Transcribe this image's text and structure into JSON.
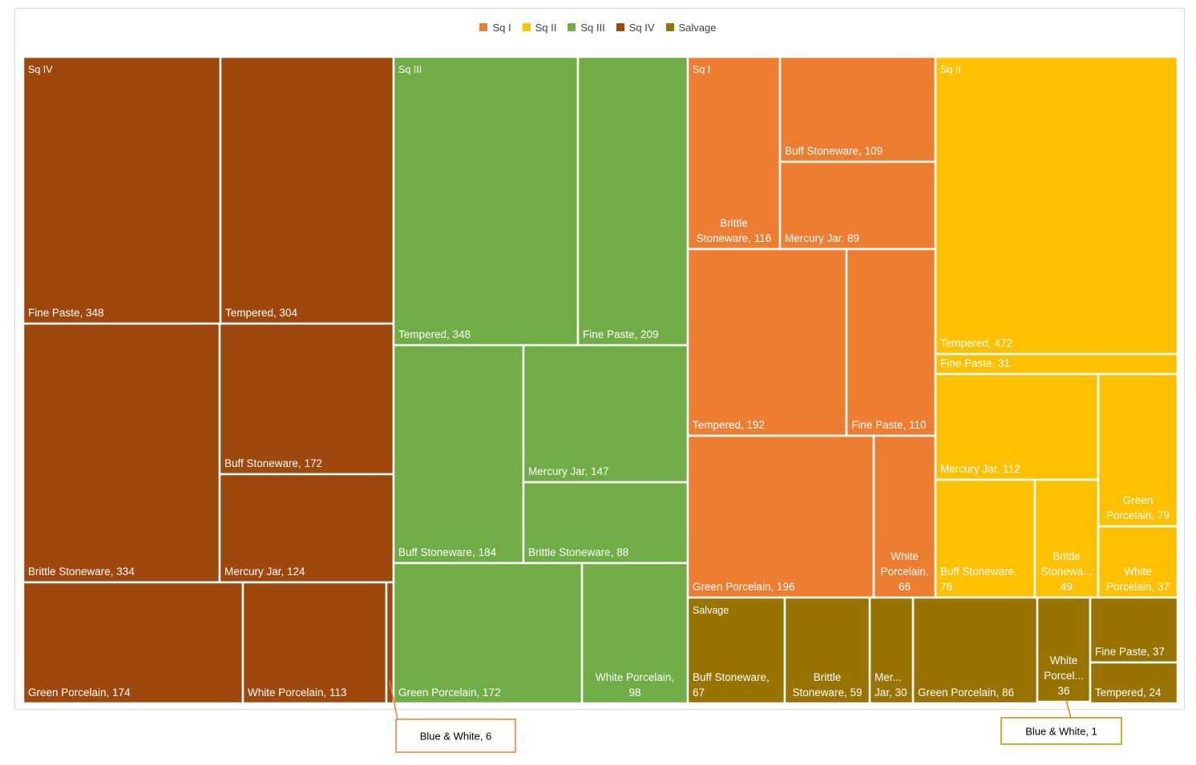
{
  "chart_data": {
    "type": "treemap",
    "legend_position": "top",
    "legend": [
      {
        "name": "Sq I",
        "color": "#ED7D31"
      },
      {
        "name": "Sq II",
        "color": "#FFC000"
      },
      {
        "name": "Sq III",
        "color": "#70AD47"
      },
      {
        "name": "Sq IV",
        "color": "#9E480E"
      },
      {
        "name": "Salvage",
        "color": "#997300"
      }
    ],
    "groups": [
      {
        "name": "Sq IV",
        "color": "#9E480E",
        "items": [
          {
            "label": "Fine Paste",
            "value": 348
          },
          {
            "label": "Tempered",
            "value": 304
          },
          {
            "label": "Brittle Stoneware",
            "value": 334
          },
          {
            "label": "Buff Stoneware",
            "value": 172
          },
          {
            "label": "Mercury Jar",
            "value": 124
          },
          {
            "label": "Green Porcelain",
            "value": 174
          },
          {
            "label": "White Porcelain",
            "value": 113
          },
          {
            "label": "Blue & White",
            "value": 6
          }
        ]
      },
      {
        "name": "Sq III",
        "color": "#70AD47",
        "items": [
          {
            "label": "Tempered",
            "value": 348
          },
          {
            "label": "Fine Paste",
            "value": 209
          },
          {
            "label": "Buff Stoneware",
            "value": 184
          },
          {
            "label": "Mercury Jar",
            "value": 147
          },
          {
            "label": "Brittle Stoneware",
            "value": 88
          },
          {
            "label": "Green Porcelain",
            "value": 172
          },
          {
            "label": "White Porcelain",
            "value": 98
          }
        ]
      },
      {
        "name": "Sq I",
        "color": "#ED7D31",
        "items": [
          {
            "label": "Brittle Stoneware",
            "value": 116
          },
          {
            "label": "Buff Stoneware",
            "value": 109
          },
          {
            "label": "Mercury Jar",
            "value": 89
          },
          {
            "label": "Tempered",
            "value": 192
          },
          {
            "label": "Fine Paste",
            "value": 110
          },
          {
            "label": "Green Porcelain",
            "value": 196
          },
          {
            "label": "White Porcelain",
            "value": 66
          }
        ]
      },
      {
        "name": "Sq II",
        "color": "#FFC000",
        "items": [
          {
            "label": "Tempered",
            "value": 472
          },
          {
            "label": "Fine Paste",
            "value": 31
          },
          {
            "label": "Mercury Jar",
            "value": 112
          },
          {
            "label": "Green Porcelain",
            "value": 79
          },
          {
            "label": "Buff Stoneware",
            "value": 76
          },
          {
            "label": "Brittle Stoneware",
            "value": 49
          },
          {
            "label": "White Porcelain",
            "value": 37
          },
          {
            "label": "Blue & White",
            "value": 1
          }
        ]
      },
      {
        "name": "Salvage",
        "color": "#997300",
        "items": [
          {
            "label": "Buff Stoneware",
            "value": 67
          },
          {
            "label": "Brittle Stoneware",
            "value": 59
          },
          {
            "label": "Mercury Jar",
            "value": 30
          },
          {
            "label": "Green Porcelain",
            "value": 86
          },
          {
            "label": "White Porcelain",
            "value": 36
          },
          {
            "label": "Fine Paste",
            "value": 37
          },
          {
            "label": "Tempered",
            "value": 24
          }
        ]
      }
    ],
    "displayed_labels": {
      "Sq IV": [
        "Fine Paste, 348",
        "Tempered, 304",
        "Brittle Stoneware, 334",
        "Buff Stoneware, 172",
        "Mercury Jar, 124",
        "Green Porcelain, 174",
        "White Porcelain, 113",
        ""
      ],
      "Sq III": [
        "Tempered, 348",
        "Fine Paste, 209",
        "Buff Stoneware, 184",
        "Mercury Jar, 147",
        "Brittle Stoneware, 88",
        "Green Porcelain, 172",
        "White Porcelain,\n98"
      ],
      "Sq I": [
        "Brittle\nStoneware, 116",
        "Buff Stoneware, 109",
        "Mercury Jar, 89",
        "Tempered, 192",
        "Fine Paste, 110",
        "Green Porcelain, 196",
        "White\nPorcelain,\n66"
      ],
      "Sq II": [
        "Tempered, 472",
        "Fine Paste, 31",
        "Mercury Jar, 112",
        "Green\nPorcelain, 79",
        "Buff Stoneware,\n76",
        "Brittle\nStonewa...\n49",
        "White\nPorcelain, 37",
        ""
      ],
      "Salvage": [
        "Buff Stoneware,\n67",
        "Brittle\nStoneware, 59",
        "Mer...\nJar, 30",
        "Green Porcelain, 86",
        "White\nPorcel...\n36",
        "Fine Paste, 37",
        "Tempered, 24"
      ]
    },
    "callouts": [
      {
        "group": "Sq IV",
        "text": "Blue & White, 6"
      },
      {
        "group": "Sq II",
        "text": "Blue & White, 1"
      }
    ]
  }
}
